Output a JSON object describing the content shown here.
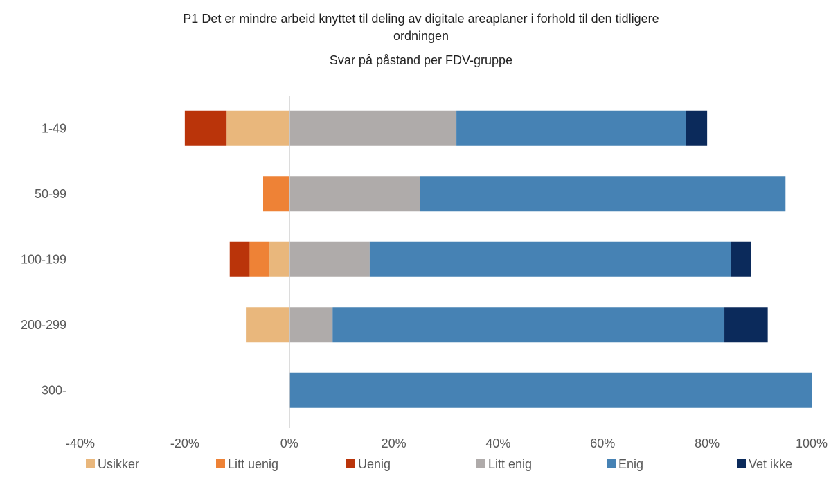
{
  "chart_data": {
    "type": "bar",
    "orientation": "horizontal",
    "stacked": "diverging",
    "title_lines": [
      "P1 Det er mindre arbeid knyttet til deling av digitale areaplaner i forhold til den tidligere",
      "ordningen",
      "Svar på påstand per FDV-gruppe"
    ],
    "categories": [
      "1-49",
      "50-99",
      "100-199",
      "200-299",
      "300-"
    ],
    "xlim": [
      -40,
      100
    ],
    "xticks": [
      "-40%",
      "-20%",
      "0%",
      "20%",
      "40%",
      "60%",
      "80%",
      "100%"
    ],
    "xtick_values": [
      -40,
      -20,
      0,
      20,
      40,
      60,
      80,
      100
    ],
    "grid": false,
    "legend_position": "bottom",
    "series": [
      {
        "name": "Usikker",
        "color": "#E9B77C",
        "side": "negative",
        "values": [
          12,
          0,
          3.8,
          8.3,
          0
        ]
      },
      {
        "name": "Litt uenig",
        "color": "#EE8236",
        "side": "negative",
        "values": [
          0,
          5,
          3.8,
          0,
          0
        ]
      },
      {
        "name": "Uenig",
        "color": "#BA340A",
        "side": "negative",
        "values": [
          8,
          0,
          3.8,
          0,
          0
        ]
      },
      {
        "name": "Litt enig",
        "color": "#AFABAA",
        "side": "positive",
        "values": [
          32,
          25,
          15.4,
          8.3,
          0
        ]
      },
      {
        "name": "Enig",
        "color": "#4682B4",
        "side": "positive",
        "values": [
          44,
          70,
          69.2,
          75,
          100
        ]
      },
      {
        "name": "Vet ikke",
        "color": "#0B2A5B",
        "side": "positive",
        "values": [
          4,
          0,
          3.8,
          8.3,
          0
        ]
      }
    ]
  }
}
